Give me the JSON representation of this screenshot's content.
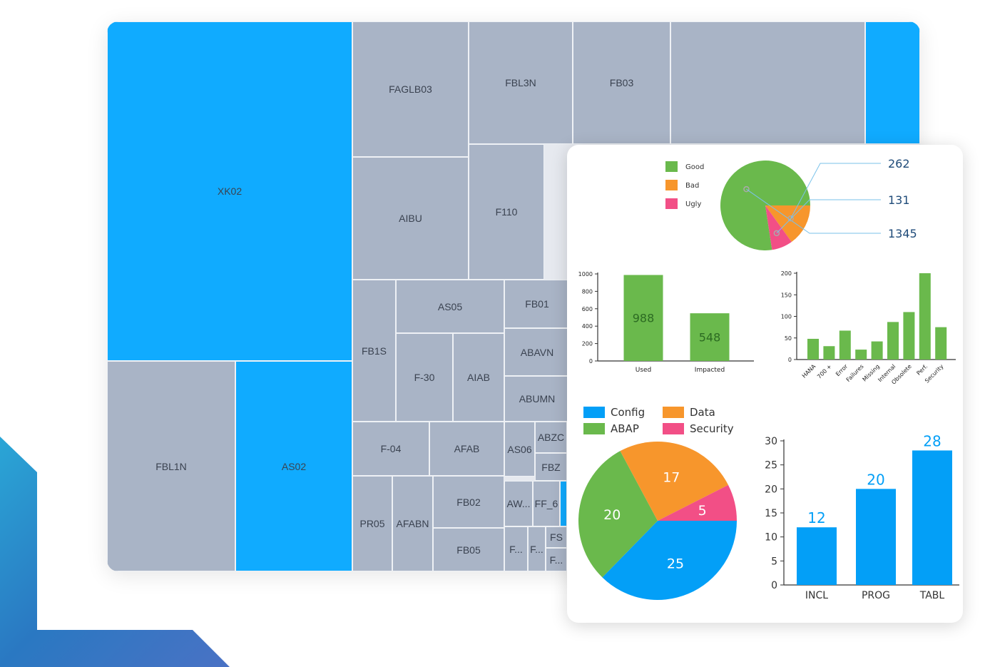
{
  "treemap": {
    "colors": {
      "gray": "#a9b4c6",
      "blue": "#10abff"
    },
    "tiles": [
      "XK02",
      "FBL1N",
      "AS02",
      "FAGLB03",
      "FBL3N",
      "FB03",
      "",
      "",
      "AIBU",
      "F110",
      "FB1S",
      "AS05",
      "FB01",
      "F-30",
      "AIAB",
      "ABAVN",
      "ABUMN",
      "F-04",
      "AFAB",
      "AS06",
      "ABZC",
      "FBZ",
      "PR05",
      "AFABN",
      "FB02",
      "AW...",
      "FF_6",
      "FB05",
      "F...",
      "F...",
      "FS",
      "F...",
      ""
    ]
  },
  "chart_data": [
    {
      "type": "pie",
      "legend": [
        "Good",
        "Bad",
        "Ugly"
      ],
      "labels": [
        "Good",
        "Bad",
        "Ugly"
      ],
      "values": [
        1345,
        262,
        131
      ],
      "data_labels": [
        "1345",
        "262",
        "131"
      ],
      "colors": [
        "#6ab94c",
        "#f7962c",
        "#f24f86"
      ]
    },
    {
      "type": "bar",
      "categories": [
        "Used",
        "Impacted"
      ],
      "values": [
        988,
        548
      ],
      "data_labels": [
        "988",
        "548"
      ],
      "ylim": [
        0,
        1000
      ],
      "yticks": [
        "0",
        "200",
        "400",
        "600",
        "800",
        "1000"
      ],
      "color": "#6ab94c"
    },
    {
      "type": "bar",
      "categories": [
        "HANA",
        "700 +",
        "Error",
        "Failures",
        "Missing",
        "Internal",
        "Obsolete",
        "Perf.",
        "Security"
      ],
      "values": [
        48,
        31,
        67,
        23,
        42,
        87,
        110,
        200,
        75
      ],
      "ylim": [
        0,
        200
      ],
      "yticks": [
        "0",
        "50",
        "100",
        "150",
        "200"
      ],
      "color": "#6ab94c"
    },
    {
      "type": "pie",
      "legend": [
        "Config",
        "Data",
        "ABAP",
        "Security"
      ],
      "labels": [
        "Config",
        "ABAP",
        "Data",
        "Security"
      ],
      "values": [
        25,
        20,
        17,
        5
      ],
      "data_labels": [
        "25",
        "20",
        "17",
        "5"
      ],
      "colors": [
        "#039ff7",
        "#6ab94c",
        "#f7962c",
        "#f24f86"
      ]
    },
    {
      "type": "bar",
      "categories": [
        "INCL",
        "PROG",
        "TABL"
      ],
      "values": [
        12,
        20,
        28
      ],
      "data_labels": [
        "12",
        "20",
        "28"
      ],
      "ylim": [
        0,
        30
      ],
      "yticks": [
        "0",
        "5",
        "10",
        "15",
        "20",
        "25",
        "30"
      ],
      "color": "#039ff7"
    }
  ]
}
